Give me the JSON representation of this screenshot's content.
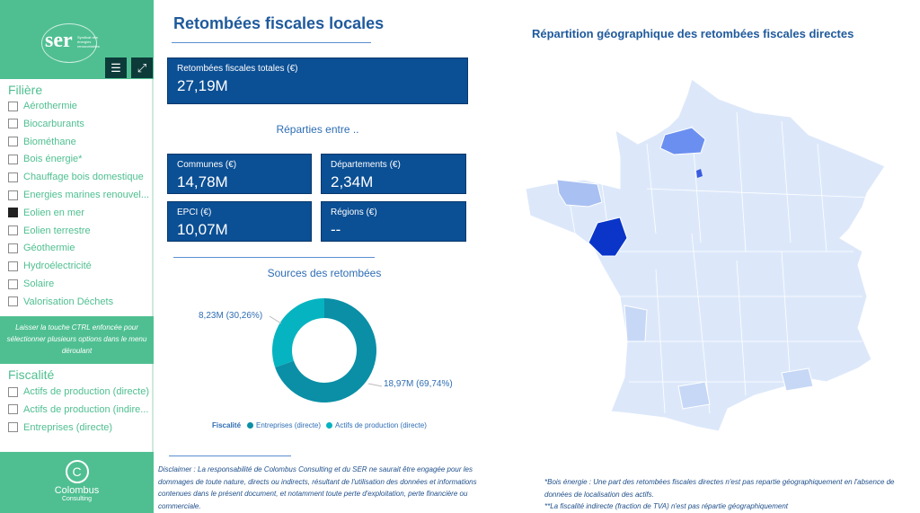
{
  "sidebar": {
    "logo_text": "SER",
    "logo_subtitle": "Syndicat des énergies renouvelables",
    "filter_icon": "filter-icon",
    "expand_icon": "expand-icon",
    "filiere_title": "Filière",
    "filiere_items": [
      {
        "label": "Aérothermie",
        "checked": false
      },
      {
        "label": "Biocarburants",
        "checked": false
      },
      {
        "label": "Biométhane",
        "checked": false
      },
      {
        "label": "Bois énergie*",
        "checked": false
      },
      {
        "label": "Chauffage bois domestique",
        "checked": false
      },
      {
        "label": "Energies marines renouvel...",
        "checked": false
      },
      {
        "label": "Eolien en mer",
        "checked": true
      },
      {
        "label": "Eolien terrestre",
        "checked": false
      },
      {
        "label": "Géothermie",
        "checked": false
      },
      {
        "label": "Hydroélectricité",
        "checked": false
      },
      {
        "label": "Solaire",
        "checked": false
      },
      {
        "label": "Valorisation Déchets",
        "checked": false
      }
    ],
    "note": "Laisser la touche CTRL enfoncée pour sélectionner plusieurs options dans le menu déroulant",
    "fiscalite_title": "Fiscalité",
    "fiscalite_items": [
      {
        "label": "Actifs de production (directe)",
        "checked": false
      },
      {
        "label": "Actifs de production (indire...",
        "checked": false
      },
      {
        "label": "Entreprises (directe)",
        "checked": false
      }
    ],
    "footer_name": "Colombus",
    "footer_sub": "Consulting"
  },
  "main": {
    "title": "Retombées fiscales locales",
    "total": {
      "label": "Retombées fiscales totales (€)",
      "value": "27,19M"
    },
    "split_title": "Réparties entre ..",
    "cards": [
      {
        "label": "Communes (€)",
        "value": "14,78M"
      },
      {
        "label": "Départements (€)",
        "value": "2,34M"
      },
      {
        "label": "EPCI (€)",
        "value": "10,07M"
      },
      {
        "label": "Régions (€)",
        "value": "--"
      }
    ],
    "sources_title": "Sources des retombées",
    "disclaimer": "Disclaimer : La responsabilité de Colombus Consulting et du SER ne saurait être engagée pour les dommages de toute nature, directs ou indirects, résultant de l'utilisation des données et informations contenues dans le présent document, et notamment toute perte d'exploitation, perte financière ou commerciale."
  },
  "chart_data": {
    "type": "pie",
    "donut": true,
    "legend_title": "Fiscalité",
    "legend_position": "bottom",
    "series": [
      {
        "name": "Entreprises (directe)",
        "value": 18.97,
        "label": "18,97M (69,74%)",
        "color": "#0a8fa6"
      },
      {
        "name": "Actifs de production (directe)",
        "value": 8.23,
        "label": "8,23M (30,26%)",
        "color": "#05b4c0"
      }
    ]
  },
  "map": {
    "title": "Répartition géographique des retombées fiscales directes",
    "base_color": "#dce8fa",
    "highlight_colors": [
      "#0a35c8",
      "#6b8ff0",
      "#a9c0f2"
    ],
    "note1": "*Bois énergie : Une part des retombées fiscales directes n'est pas repartie géographiquement en l'absence de données de localisation des actifs.",
    "note2": "**La fiscalité indirecte (fraction de TVA) n'est pas répartie géographiquement"
  }
}
